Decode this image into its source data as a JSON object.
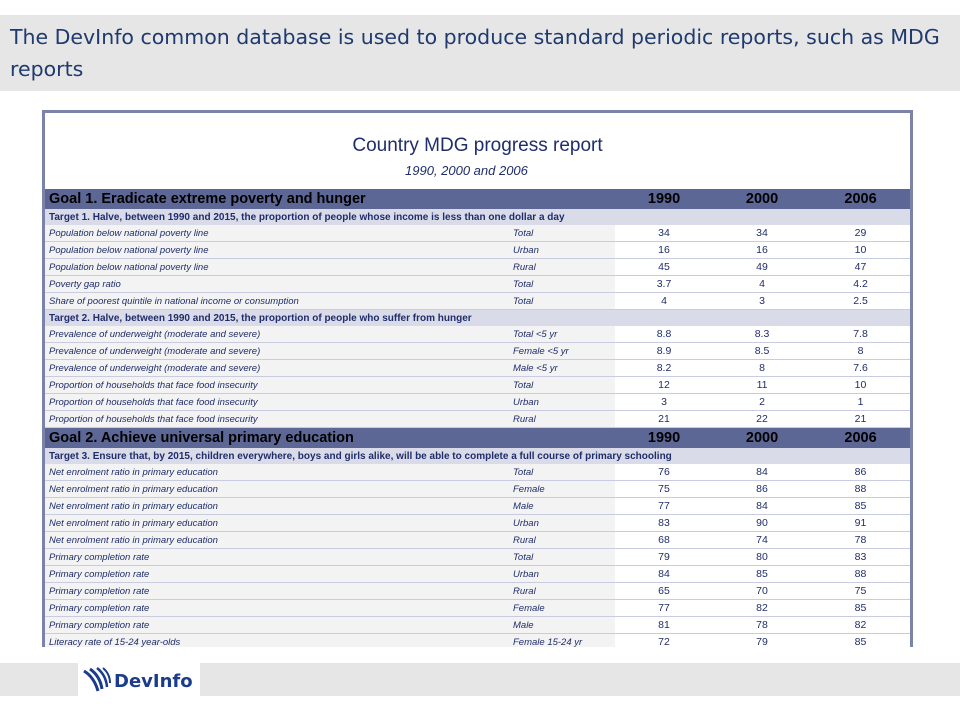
{
  "slide": {
    "title": "The DevInfo common database is used to produce standard periodic reports, such as MDG reports"
  },
  "report": {
    "title": "Country MDG progress report",
    "subtitle": "1990, 2000 and 2006",
    "years": [
      "1990",
      "2000",
      "2006"
    ],
    "sections": [
      {
        "goal": "Goal 1. Eradicate extreme poverty and hunger",
        "targets": [
          {
            "label": "Target  1. Halve, between 1990 and 2015, the proportion of people whose income is less than one dollar a day",
            "rows": [
              {
                "indicator": "Population below national poverty line",
                "group": "Total",
                "v1990": "34",
                "v2000": "34",
                "v2006": "29"
              },
              {
                "indicator": "Population below national poverty line",
                "group": "Urban",
                "v1990": "16",
                "v2000": "16",
                "v2006": "10"
              },
              {
                "indicator": "Population below national poverty line",
                "group": "Rural",
                "v1990": "45",
                "v2000": "49",
                "v2006": "47"
              },
              {
                "indicator": "Poverty gap ratio",
                "group": "Total",
                "v1990": "3.7",
                "v2000": "4",
                "v2006": "4.2"
              },
              {
                "indicator": "Share of poorest quintile in national income or consumption",
                "group": "Total",
                "v1990": "4",
                "v2000": "3",
                "v2006": "2.5"
              }
            ]
          },
          {
            "label": "Target  2. Halve, between 1990 and 2015, the proportion of people who suffer from hunger",
            "rows": [
              {
                "indicator": "Prevalence of underweight (moderate and severe)",
                "group": "Total <5 yr",
                "v1990": "8.8",
                "v2000": "8.3",
                "v2006": "7.8"
              },
              {
                "indicator": "Prevalence of underweight (moderate and severe)",
                "group": "Female <5 yr",
                "v1990": "8.9",
                "v2000": "8.5",
                "v2006": "8"
              },
              {
                "indicator": "Prevalence of underweight (moderate and severe)",
                "group": "Male <5 yr",
                "v1990": "8.2",
                "v2000": "8",
                "v2006": "7.6"
              },
              {
                "indicator": "Proportion of households that face food insecurity",
                "group": "Total",
                "v1990": "12",
                "v2000": "11",
                "v2006": "10"
              },
              {
                "indicator": "Proportion of households that face food insecurity",
                "group": "Urban",
                "v1990": "3",
                "v2000": "2",
                "v2006": "1"
              },
              {
                "indicator": "Proportion of households that face food insecurity",
                "group": "Rural",
                "v1990": "21",
                "v2000": "22",
                "v2006": "21"
              }
            ]
          }
        ]
      },
      {
        "goal": "Goal 2. Achieve universal primary education",
        "targets": [
          {
            "label": "Target  3. Ensure that, by 2015, children everywhere, boys and girls alike, will be able to complete a full course of primary schooling",
            "rows": [
              {
                "indicator": "Net enrolment ratio in primary education",
                "group": "Total",
                "v1990": "76",
                "v2000": "84",
                "v2006": "86"
              },
              {
                "indicator": "Net enrolment ratio in primary education",
                "group": "Female",
                "v1990": "75",
                "v2000": "86",
                "v2006": "88"
              },
              {
                "indicator": "Net enrolment ratio in primary education",
                "group": "Male",
                "v1990": "77",
                "v2000": "84",
                "v2006": "85"
              },
              {
                "indicator": "Net enrolment ratio in primary education",
                "group": "Urban",
                "v1990": "83",
                "v2000": "90",
                "v2006": "91"
              },
              {
                "indicator": "Net enrolment ratio in primary education",
                "group": "Rural",
                "v1990": "68",
                "v2000": "74",
                "v2006": "78"
              },
              {
                "indicator": "Primary completion rate",
                "group": "Total",
                "v1990": "79",
                "v2000": "80",
                "v2006": "83"
              },
              {
                "indicator": "Primary completion rate",
                "group": "Urban",
                "v1990": "84",
                "v2000": "85",
                "v2006": "88"
              },
              {
                "indicator": "Primary completion rate",
                "group": "Rural",
                "v1990": "65",
                "v2000": "70",
                "v2006": "75"
              },
              {
                "indicator": "Primary completion rate",
                "group": "Female",
                "v1990": "77",
                "v2000": "82",
                "v2006": "85"
              },
              {
                "indicator": "Primary completion rate",
                "group": "Male",
                "v1990": "81",
                "v2000": "78",
                "v2006": "82"
              },
              {
                "indicator": "Literacy rate of 15-24 year-olds",
                "group": "Female 15-24 yr",
                "v1990": "72",
                "v2000": "79",
                "v2006": "85"
              }
            ]
          }
        ]
      }
    ]
  },
  "footer": {
    "logo_text": "DevInfo",
    "logo_icon": "devinfo-swoosh-icon",
    "colors": {
      "brand_blue": "#1b3c8c",
      "goal_band": "#5d6796",
      "target_band": "#d9dbe8"
    }
  }
}
